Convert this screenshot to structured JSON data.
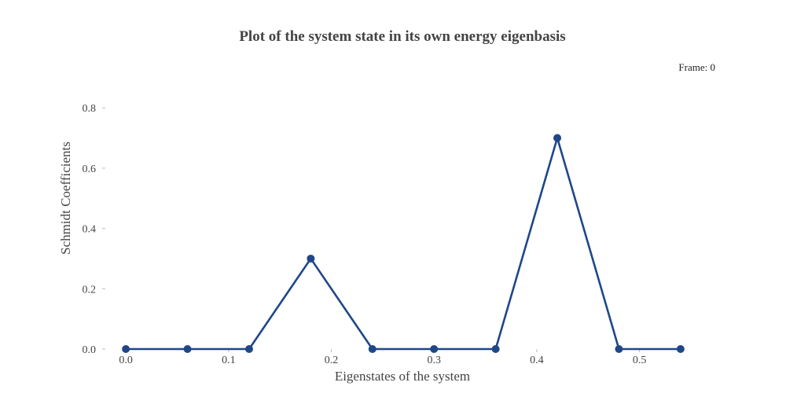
{
  "chart_data": {
    "type": "line",
    "title": "Plot of the system state in its own energy eigenbasis",
    "xlabel": "Eigenstates of the system",
    "ylabel": "Schmidt Coefficients",
    "xlim": [
      -0.02,
      0.56
    ],
    "ylim": [
      0,
      0.85
    ],
    "xticks": [
      0.0,
      0.1,
      0.2,
      0.3,
      0.4,
      0.5
    ],
    "xtick_labels": [
      "0.0",
      "0.1",
      "0.2",
      "0.3",
      "0.4",
      "0.5"
    ],
    "yticks": [
      0.0,
      0.2,
      0.4,
      0.6,
      0.8
    ],
    "ytick_labels": [
      "0.0",
      "0.2",
      "0.4",
      "0.6",
      "0.8"
    ],
    "grid": false,
    "series": [
      {
        "color": "#1f4788",
        "x": [
          0.0,
          0.06,
          0.12,
          0.18,
          0.24,
          0.3,
          0.36,
          0.42,
          0.48,
          0.54
        ],
        "y": [
          0.0,
          0.0,
          0.0,
          0.3,
          0.0,
          0.0,
          0.0,
          0.7,
          0.0,
          0.0
        ]
      }
    ],
    "annotation": "Frame: 0"
  }
}
